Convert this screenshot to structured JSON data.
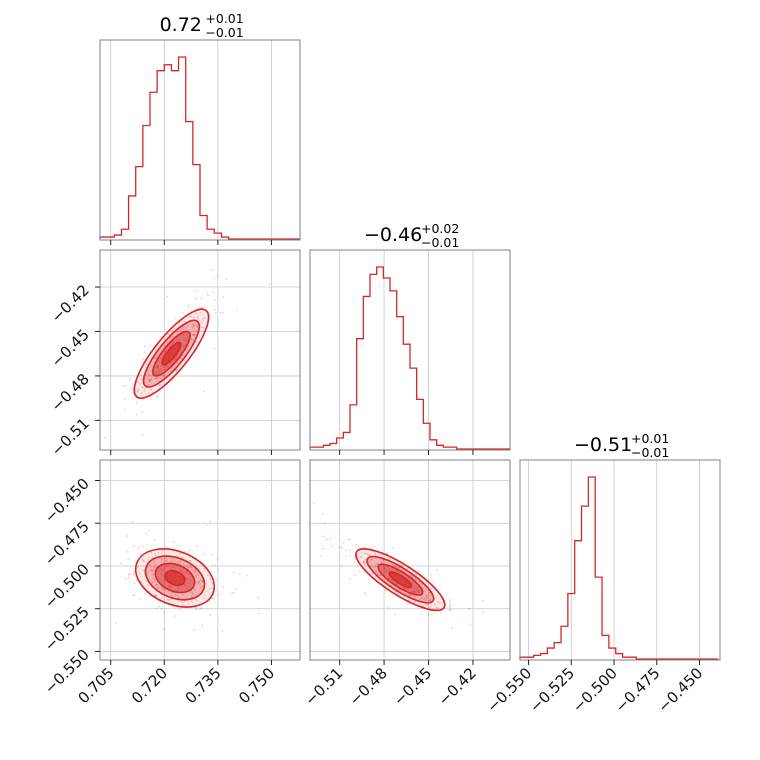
{
  "chart_data": {
    "type": "corner",
    "color": "#d62728",
    "grid": true,
    "parameters": [
      {
        "range": [
          0.702,
          0.758
        ],
        "ticks": [
          0.705,
          0.72,
          0.735,
          0.75
        ],
        "tick_labels": [
          "0.705",
          "0.720",
          "0.735",
          "0.750"
        ],
        "summary": {
          "median": "0.72",
          "plus": "+0.01",
          "minus": "−0.01"
        }
      },
      {
        "range": [
          -0.53,
          -0.395
        ],
        "ticks": [
          -0.51,
          -0.48,
          -0.45,
          -0.42
        ],
        "tick_labels": [
          "−0.51",
          "−0.48",
          "−0.45",
          "−0.42"
        ],
        "summary": {
          "median": "−0.46",
          "plus": "+0.02",
          "minus": "−0.01"
        }
      },
      {
        "range": [
          -0.555,
          -0.438
        ],
        "ticks": [
          -0.55,
          -0.525,
          -0.5,
          -0.475,
          -0.45
        ],
        "tick_labels": [
          "−0.550",
          "−0.525",
          "−0.500",
          "−0.475",
          "−0.450"
        ],
        "summary": {
          "median": "−0.51",
          "plus": "+0.01",
          "minus": "−0.01"
        }
      }
    ],
    "histograms": [
      {
        "param": 0,
        "bin_edges": [
          0.702,
          0.704,
          0.706,
          0.708,
          0.71,
          0.712,
          0.714,
          0.716,
          0.718,
          0.72,
          0.722,
          0.724,
          0.726,
          0.728,
          0.73,
          0.732,
          0.734,
          0.736,
          0.738,
          0.74,
          0.742,
          0.744,
          0.746,
          0.748,
          0.75,
          0.752,
          0.754,
          0.756,
          0.758
        ],
        "counts": [
          1,
          1,
          2,
          5,
          22,
          37,
          58,
          75,
          86,
          89,
          86,
          93,
          60,
          38,
          12,
          5,
          3,
          1,
          0,
          0,
          0,
          0,
          0,
          0,
          0,
          0,
          0,
          0
        ]
      },
      {
        "param": 1,
        "bin_edges": [
          -0.53,
          -0.5255,
          -0.521,
          -0.5165,
          -0.512,
          -0.5075,
          -0.503,
          -0.4985,
          -0.494,
          -0.4895,
          -0.485,
          -0.4805,
          -0.476,
          -0.4715,
          -0.467,
          -0.4625,
          -0.458,
          -0.4535,
          -0.449,
          -0.4445,
          -0.44,
          -0.4355,
          -0.431,
          -0.4265,
          -0.422,
          -0.4175,
          -0.413,
          -0.4085,
          -0.404,
          -0.3995,
          -0.395
        ],
        "counts": [
          1,
          1,
          2,
          3,
          6,
          9,
          24,
          60,
          83,
          95,
          99,
          93,
          86,
          72,
          57,
          44,
          27,
          14,
          5,
          2,
          1,
          1,
          0,
          0,
          0,
          0,
          0,
          0,
          0,
          0
        ]
      },
      {
        "param": 2,
        "bin_edges": [
          -0.555,
          -0.551,
          -0.547,
          -0.543,
          -0.539,
          -0.535,
          -0.531,
          -0.527,
          -0.523,
          -0.519,
          -0.515,
          -0.511,
          -0.507,
          -0.503,
          -0.499,
          -0.495,
          -0.491,
          -0.487,
          -0.483,
          -0.479,
          -0.475,
          -0.471,
          -0.467,
          -0.463,
          -0.459,
          -0.455,
          -0.451,
          -0.447,
          -0.443,
          -0.439
        ],
        "counts": [
          1,
          1,
          2,
          3,
          6,
          9,
          18,
          36,
          65,
          84,
          100,
          45,
          13,
          6,
          3,
          1,
          1,
          0,
          0,
          0,
          0,
          0,
          0,
          0,
          0,
          0,
          0,
          0,
          0
        ]
      }
    ],
    "joint": [
      {
        "x_param": 0,
        "y_param": 1,
        "center": [
          0.722,
          -0.465
        ],
        "sigma": [
          0.0052,
          0.015
        ],
        "rho": 0.82
      },
      {
        "x_param": 0,
        "y_param": 2,
        "center": [
          0.723,
          -0.507
        ],
        "sigma": [
          0.0055,
          0.0085
        ],
        "rho": -0.3
      },
      {
        "x_param": 1,
        "y_param": 2,
        "center": [
          -0.469,
          -0.508
        ],
        "sigma": [
          0.015,
          0.009
        ],
        "rho": -0.82
      }
    ],
    "contour_levels_sigma": [
      0.5,
      1.0,
      1.5,
      2.0
    ]
  }
}
